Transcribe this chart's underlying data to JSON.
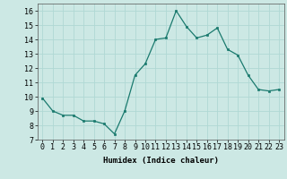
{
  "x": [
    0,
    1,
    2,
    3,
    4,
    5,
    6,
    7,
    8,
    9,
    10,
    11,
    12,
    13,
    14,
    15,
    16,
    17,
    18,
    19,
    20,
    21,
    22,
    23
  ],
  "y": [
    9.9,
    9.0,
    8.7,
    8.7,
    8.3,
    8.3,
    8.1,
    7.4,
    9.0,
    11.5,
    12.3,
    14.0,
    14.1,
    16.0,
    14.9,
    14.1,
    14.3,
    14.8,
    13.3,
    12.9,
    11.5,
    10.5,
    10.4,
    10.5
  ],
  "xlabel": "Humidex (Indice chaleur)",
  "ylim": [
    7,
    16.5
  ],
  "xlim": [
    -0.5,
    23.5
  ],
  "yticks": [
    7,
    8,
    9,
    10,
    11,
    12,
    13,
    14,
    15,
    16
  ],
  "xticks": [
    0,
    1,
    2,
    3,
    4,
    5,
    6,
    7,
    8,
    9,
    10,
    11,
    12,
    13,
    14,
    15,
    16,
    17,
    18,
    19,
    20,
    21,
    22,
    23
  ],
  "line_color": "#1a7a6e",
  "marker_color": "#1a7a6e",
  "bg_color": "#cce8e4",
  "grid_color": "#b0d8d4",
  "xlabel_fontsize": 6.5,
  "tick_fontsize": 6.0
}
